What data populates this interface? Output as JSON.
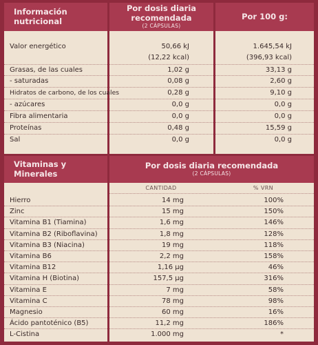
{
  "nutrition": {
    "header": {
      "title": "Información nutricional",
      "per_dose": "Por dosis diaria recomendada",
      "per_dose_sub": "(2 CÁPSULAS)",
      "per_100g": "Por 100 g:"
    },
    "rows": [
      {
        "label": "Valor energético",
        "dose": "50,66 kJ",
        "dose2": "(12,22 kcal)",
        "per100": "1.645,54 kJ",
        "per100_2": "(396,93 kcal)"
      },
      {
        "label": "Grasas, de las cuales",
        "dose": "1,02 g",
        "per100": "33,13 g"
      },
      {
        "label": "- saturadas",
        "dose": "0,08 g",
        "per100": "2,60 g"
      },
      {
        "label": "Hidratos de carbono, de los cuales",
        "dose": "0,28 g",
        "per100": "9,10 g"
      },
      {
        "label": "- azúcares",
        "dose": "0,0 g",
        "per100": "0,0 g"
      },
      {
        "label": "Fibra alimentaria",
        "dose": "0,0 g",
        "per100": "0,0 g"
      },
      {
        "label": "Proteínas",
        "dose": "0,48 g",
        "per100": "15,59 g"
      },
      {
        "label": "Sal",
        "dose": "0,0 g",
        "per100": "0,0 g"
      }
    ]
  },
  "vitamins": {
    "header": {
      "title_line1": "Vitaminas y",
      "title_line2": "Minerales",
      "per_dose": "Por dosis diaria recomendada",
      "per_dose_sub": "(2 CÁPSULAS)",
      "col_qty": "CANTIDAD",
      "col_vrn": "% VRN"
    },
    "rows": [
      {
        "label": "Hierro",
        "qty": "14 mg",
        "vrn": "100%"
      },
      {
        "label": "Zinc",
        "qty": "15 mg",
        "vrn": "150%"
      },
      {
        "label": "Vitamina B1 (Tiamina)",
        "qty": "1,6 mg",
        "vrn": "146%"
      },
      {
        "label": "Vitamina B2 (Riboflavina)",
        "qty": "1,8 mg",
        "vrn": "128%"
      },
      {
        "label": "Vitamina B3 (Niacina)",
        "qty": "19 mg",
        "vrn": "118%"
      },
      {
        "label": "Vitamina B6",
        "qty": "2,2 mg",
        "vrn": "158%"
      },
      {
        "label": "Vitamina B12",
        "qty": "1,16 µg",
        "vrn": "46%"
      },
      {
        "label": "Vitamina H (Biotina)",
        "qty": "157,5 µg",
        "vrn": "316%"
      },
      {
        "label": "Vitamina E",
        "qty": "7 mg",
        "vrn": "58%"
      },
      {
        "label": "Vitamina C",
        "qty": "78 mg",
        "vrn": "98%"
      },
      {
        "label": "Magnesio",
        "qty": "60 mg",
        "vrn": "16%"
      },
      {
        "label": "Ácido pantoténico (B5)",
        "qty": "11,2 mg",
        "vrn": "186%"
      },
      {
        "label": "L-Cistina",
        "qty": "1.000 mg",
        "vrn": "*"
      }
    ]
  }
}
